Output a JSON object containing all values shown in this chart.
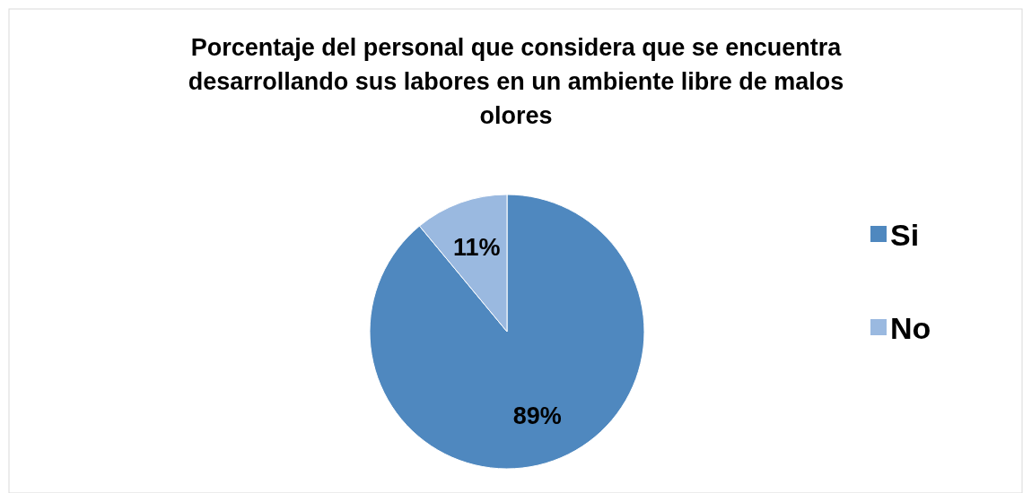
{
  "chart_data": {
    "type": "pie",
    "title": "Porcentaje del personal que considera que se encuentra desarrollando sus labores en un ambiente libre de malos olores",
    "categories": [
      "Si",
      "No"
    ],
    "values": [
      89,
      11
    ],
    "colors": [
      "#4f88bf",
      "#9ab9e0"
    ],
    "value_labels": [
      "89%",
      "11%"
    ],
    "legend": "right"
  }
}
